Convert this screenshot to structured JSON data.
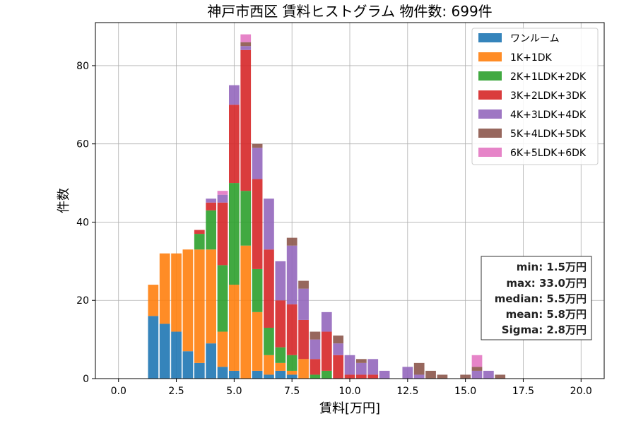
{
  "chart_data": {
    "type": "bar",
    "stacked": true,
    "title": "神戸市西区 賃料ヒストグラム 物件数: 699件",
    "xlabel": "賃料[万円]",
    "ylabel": "件数",
    "xlim": [
      -1.0,
      21.0
    ],
    "ylim": [
      0,
      91
    ],
    "xticks": [
      0.0,
      2.5,
      5.0,
      7.5,
      10.0,
      12.5,
      15.0,
      17.5,
      20.0
    ],
    "xtick_labels": [
      "0.0",
      "2.5",
      "5.0",
      "7.5",
      "10.0",
      "12.5",
      "15.0",
      "17.5",
      "20.0"
    ],
    "yticks": [
      0,
      20,
      40,
      60,
      80
    ],
    "ytick_labels": [
      "0",
      "20",
      "40",
      "60",
      "80"
    ],
    "grid": true,
    "legend_position": "top-right",
    "bin_width": 0.5,
    "bin_centers": [
      1.5,
      2.0,
      2.5,
      3.0,
      3.5,
      4.0,
      4.5,
      5.0,
      5.5,
      6.0,
      6.5,
      7.0,
      7.5,
      8.0,
      8.5,
      9.0,
      9.5,
      10.0,
      10.5,
      11.0,
      11.5,
      12.5,
      13.0,
      13.5,
      14.0,
      15.0,
      15.5,
      16.0,
      16.5
    ],
    "series": [
      {
        "name": "ワンルーム",
        "color": "#1f77b4",
        "values": [
          16,
          14,
          12,
          7,
          4,
          9,
          3,
          2,
          0,
          2,
          1,
          2,
          1,
          0,
          0,
          0,
          0,
          0,
          0,
          0,
          0,
          0,
          0,
          0,
          0,
          0,
          0,
          0,
          0
        ]
      },
      {
        "name": "1K+1DK",
        "color": "#ff7f0e",
        "values": [
          8,
          18,
          20,
          26,
          29,
          24,
          9,
          22,
          34,
          15,
          5,
          2,
          1,
          5,
          0,
          0,
          0,
          0,
          0,
          0,
          0,
          0,
          0,
          0,
          0,
          0,
          0,
          0,
          0
        ]
      },
      {
        "name": "2K+1LDK+2DK",
        "color": "#2ca02c",
        "values": [
          0,
          0,
          0,
          0,
          4,
          10,
          17,
          26,
          14,
          11,
          7,
          4,
          4,
          0,
          1,
          2,
          0,
          0,
          0,
          0,
          0,
          0,
          0,
          0,
          0,
          0,
          0,
          0,
          0
        ]
      },
      {
        "name": "3K+2LDK+3DK",
        "color": "#d62728",
        "values": [
          0,
          0,
          0,
          0,
          1,
          2,
          16,
          20,
          36,
          23,
          20,
          12,
          13,
          10,
          4,
          10,
          6,
          1,
          1,
          1,
          0,
          0,
          0,
          0,
          0,
          0,
          0,
          0,
          0
        ]
      },
      {
        "name": "4K+3LDK+4DK",
        "color": "#9467bd",
        "values": [
          0,
          0,
          0,
          0,
          0,
          1,
          2,
          5,
          1,
          8,
          13,
          10,
          15,
          8,
          5,
          5,
          3,
          5,
          3,
          4,
          2,
          3,
          1,
          0,
          0,
          0,
          2,
          2,
          0
        ]
      },
      {
        "name": "5K+4LDK+5DK",
        "color": "#8c564b",
        "values": [
          0,
          0,
          0,
          0,
          0,
          0,
          0,
          0,
          1,
          1,
          0,
          0,
          2,
          2,
          2,
          0,
          2,
          0,
          1,
          0,
          0,
          0,
          3,
          2,
          1,
          1,
          1,
          0,
          1
        ]
      },
      {
        "name": "6K+5LDK+6DK",
        "color": "#e377c2",
        "values": [
          0,
          0,
          0,
          0,
          0,
          0,
          1,
          0,
          2,
          0,
          0,
          0,
          0,
          0,
          0,
          0,
          0,
          0,
          0,
          0,
          0,
          0,
          0,
          0,
          0,
          0,
          3,
          0,
          0
        ]
      }
    ],
    "stats": {
      "min": "min: 1.5万円",
      "max": "max: 33.0万円",
      "median": "median: 5.5万円",
      "mean": "mean: 5.8万円",
      "sigma": "Sigma: 2.8万円"
    },
    "colors": {
      "grid": "#b0b0b0",
      "frame": "#000000"
    }
  }
}
